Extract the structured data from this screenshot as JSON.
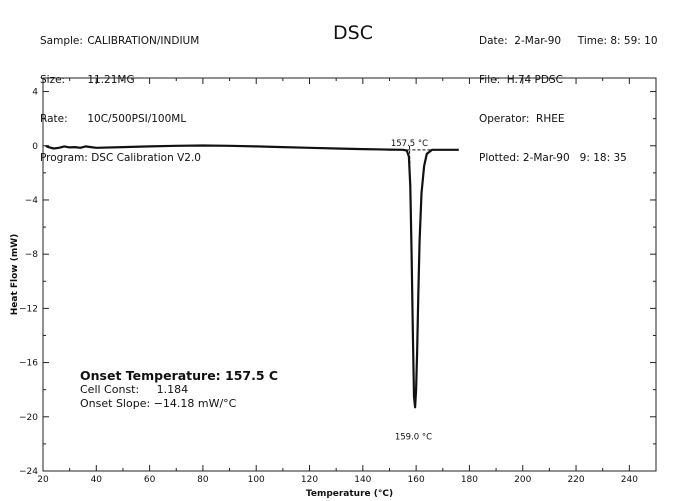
{
  "header_left": {
    "sample_label": "Sample:",
    "sample_value": "CALIBRATION/INDIUM",
    "size_label": "Size:",
    "size_value": "11.21MG",
    "rate_label": "Rate:",
    "rate_value": "10C/500PSI/100ML",
    "program_label": "Program:",
    "program_value": "DSC Calibration V2.0"
  },
  "header_right": {
    "date_line": "Date:  2-Mar-90",
    "time_line": "Time: 8: 59: 10",
    "file_line": "File:  H.74 PDSC",
    "operator_line": "Operator:  RHEE",
    "plotted_line": "Plotted: 2-Mar-90   9: 18: 35"
  },
  "results": {
    "onset": "Onset Temperature: 157.5 C",
    "cell_const": "Cell Const:     1.184",
    "onset_slope": "Onset Slope: −14.18 mW/°C"
  },
  "chart_data": {
    "type": "line",
    "title": "DSC",
    "xlabel": "Temperature (°C)",
    "ylabel": "Heat Flow (mW)",
    "xlim": [
      20,
      250
    ],
    "ylim": [
      -24,
      5
    ],
    "x_ticks": [
      20,
      40,
      60,
      80,
      100,
      120,
      140,
      160,
      180,
      200,
      220,
      240
    ],
    "y_ticks": [
      4,
      0,
      -4,
      -8,
      -12,
      -16,
      -20,
      -24
    ],
    "y_tick_labels": [
      "4",
      "0",
      "−4",
      "−8",
      "−12",
      "−16",
      "−20",
      "−24"
    ],
    "grid": false,
    "series": [
      {
        "x": [
          21,
          22,
          24,
          26,
          28,
          30,
          32,
          34,
          36,
          38,
          40,
          50,
          60,
          70,
          80,
          90,
          100,
          110,
          120,
          130,
          140,
          150,
          155,
          156.5,
          157.3,
          157.8,
          158.3,
          158.8,
          159.2,
          159.6,
          160.0,
          160.4,
          160.8,
          161.3,
          162,
          163,
          164,
          166,
          170,
          176
        ],
        "y": [
          0.0,
          -0.1,
          -0.2,
          -0.15,
          -0.05,
          -0.12,
          -0.1,
          -0.15,
          -0.05,
          -0.1,
          -0.15,
          -0.1,
          -0.05,
          0.0,
          0.02,
          0.0,
          -0.05,
          -0.1,
          -0.15,
          -0.2,
          -0.25,
          -0.28,
          -0.3,
          -0.35,
          -0.8,
          -3.0,
          -8.0,
          -14.0,
          -18.5,
          -19.3,
          -18.0,
          -15.0,
          -11.0,
          -7.0,
          -3.5,
          -1.5,
          -0.6,
          -0.3,
          -0.3,
          -0.3
        ]
      }
    ],
    "annotations": {
      "onset_label": "157.5 °C",
      "onset_x": 157.5,
      "onset_y": -0.3,
      "peak_label": "159.0 °C",
      "peak_x": 159.0,
      "peak_y": -19.3
    }
  }
}
